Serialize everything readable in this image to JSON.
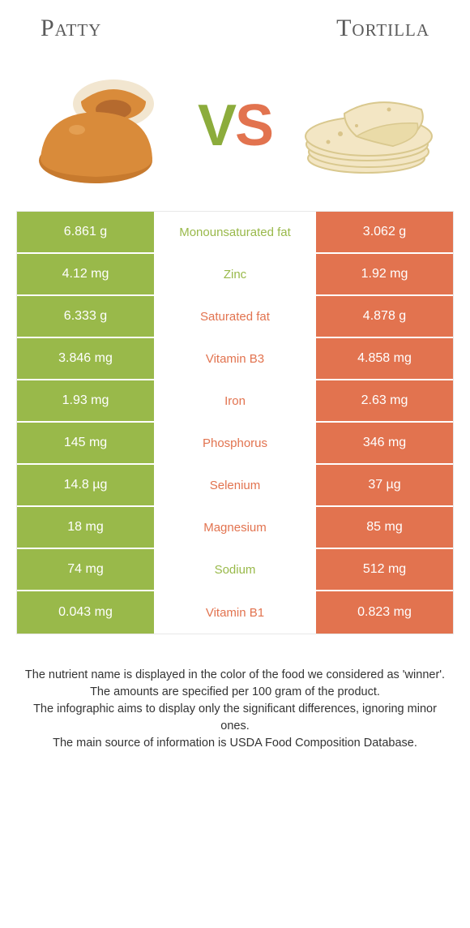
{
  "left": {
    "name": "Patty",
    "color": "#99b94a"
  },
  "right": {
    "name": "Tortilla",
    "color": "#e2734f"
  },
  "vs": {
    "v": "V",
    "s": "S"
  },
  "table": {
    "rows": [
      {
        "name": "Monounsaturated fat",
        "left": "6.861 g",
        "right": "3.062 g",
        "winner": "left"
      },
      {
        "name": "Zinc",
        "left": "4.12 mg",
        "right": "1.92 mg",
        "winner": "left"
      },
      {
        "name": "Saturated fat",
        "left": "6.333 g",
        "right": "4.878 g",
        "winner": "right"
      },
      {
        "name": "Vitamin B3",
        "left": "3.846 mg",
        "right": "4.858 mg",
        "winner": "right"
      },
      {
        "name": "Iron",
        "left": "1.93 mg",
        "right": "2.63 mg",
        "winner": "right"
      },
      {
        "name": "Phosphorus",
        "left": "145 mg",
        "right": "346 mg",
        "winner": "right"
      },
      {
        "name": "Selenium",
        "left": "14.8 µg",
        "right": "37 µg",
        "winner": "right"
      },
      {
        "name": "Magnesium",
        "left": "18 mg",
        "right": "85 mg",
        "winner": "right"
      },
      {
        "name": "Sodium",
        "left": "74 mg",
        "right": "512 mg",
        "winner": "left"
      },
      {
        "name": "Vitamin B1",
        "left": "0.043 mg",
        "right": "0.823 mg",
        "winner": "right"
      }
    ]
  },
  "footer": {
    "lines": [
      "The nutrient name is displayed in the color of the food we considered as 'winner'.",
      "The amounts are specified per 100 gram of the product.",
      "The infographic aims to display only the significant differences, ignoring minor ones.",
      "The main source of information is USDA Food Composition Database."
    ]
  }
}
